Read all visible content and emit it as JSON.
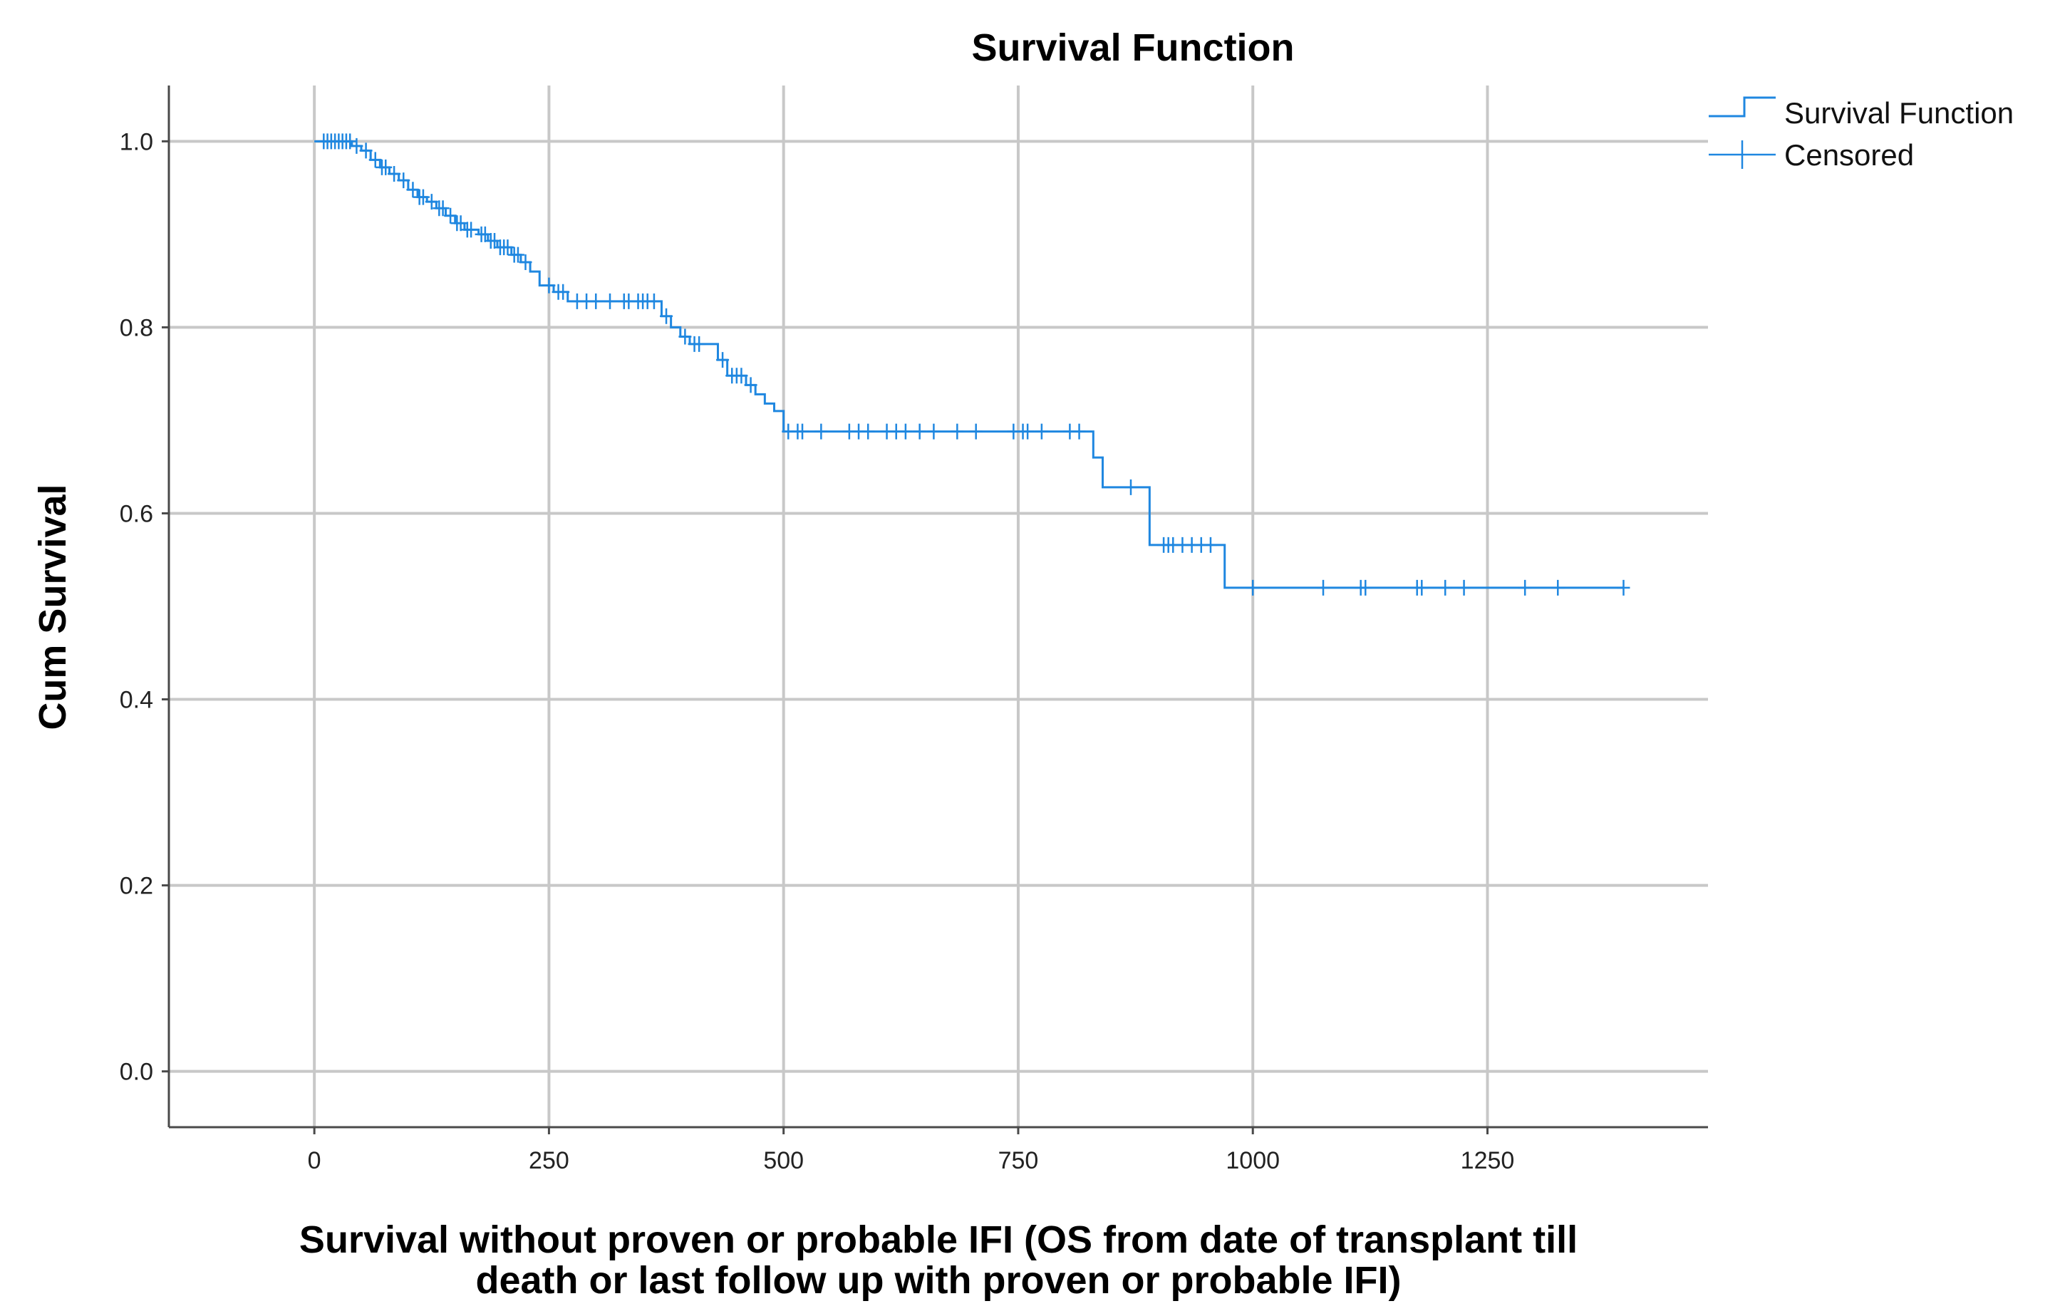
{
  "chart_data": {
    "type": "line",
    "title": "Survival Function",
    "xlabel_lines": [
      "Survival without proven or probable IFI (OS from date of transplant till",
      "death or last follow up with proven or probable IFI)"
    ],
    "ylabel": "Cum Survival",
    "xlim": [
      -155,
      1485
    ],
    "ylim": [
      -0.06,
      1.06
    ],
    "x_ticks": [
      0,
      250,
      500,
      750,
      1000,
      1250
    ],
    "x_tick_labels": [
      "0",
      "250",
      "500",
      "750",
      "1000",
      "1250"
    ],
    "y_ticks": [
      0.0,
      0.2,
      0.4,
      0.6,
      0.8,
      1.0
    ],
    "y_tick_labels": [
      "0.0",
      "0.2",
      "0.4",
      "0.6",
      "0.8",
      "1.0"
    ],
    "grid": true,
    "series_color": "#1f87e0",
    "legend": {
      "position": "top-right",
      "entries": [
        {
          "label": "Survival Function",
          "symbol": "step-line-icon"
        },
        {
          "label": "Censored",
          "symbol": "plus-icon"
        }
      ]
    },
    "survival_steps": [
      [
        0,
        1.0
      ],
      [
        40,
        0.995
      ],
      [
        50,
        0.99
      ],
      [
        60,
        0.98
      ],
      [
        70,
        0.972
      ],
      [
        80,
        0.965
      ],
      [
        90,
        0.958
      ],
      [
        100,
        0.948
      ],
      [
        110,
        0.94
      ],
      [
        120,
        0.935
      ],
      [
        130,
        0.928
      ],
      [
        140,
        0.92
      ],
      [
        150,
        0.912
      ],
      [
        160,
        0.905
      ],
      [
        175,
        0.9
      ],
      [
        185,
        0.893
      ],
      [
        195,
        0.886
      ],
      [
        210,
        0.878
      ],
      [
        220,
        0.87
      ],
      [
        230,
        0.86
      ],
      [
        240,
        0.845
      ],
      [
        255,
        0.838
      ],
      [
        270,
        0.828
      ],
      [
        370,
        0.812
      ],
      [
        380,
        0.8
      ],
      [
        390,
        0.79
      ],
      [
        400,
        0.782
      ],
      [
        430,
        0.765
      ],
      [
        440,
        0.748
      ],
      [
        460,
        0.738
      ],
      [
        470,
        0.728
      ],
      [
        480,
        0.718
      ],
      [
        490,
        0.71
      ],
      [
        500,
        0.688
      ],
      [
        830,
        0.66
      ],
      [
        840,
        0.628
      ],
      [
        890,
        0.566
      ],
      [
        970,
        0.52
      ],
      [
        1395,
        0.52
      ]
    ],
    "censored": [
      [
        10,
        1.0
      ],
      [
        14,
        1.0
      ],
      [
        18,
        1.0
      ],
      [
        22,
        1.0
      ],
      [
        26,
        1.0
      ],
      [
        30,
        1.0
      ],
      [
        34,
        1.0
      ],
      [
        38,
        1.0
      ],
      [
        45,
        0.995
      ],
      [
        55,
        0.99
      ],
      [
        65,
        0.98
      ],
      [
        72,
        0.972
      ],
      [
        76,
        0.972
      ],
      [
        85,
        0.965
      ],
      [
        95,
        0.958
      ],
      [
        105,
        0.948
      ],
      [
        112,
        0.94
      ],
      [
        116,
        0.94
      ],
      [
        125,
        0.935
      ],
      [
        133,
        0.928
      ],
      [
        137,
        0.928
      ],
      [
        145,
        0.92
      ],
      [
        152,
        0.912
      ],
      [
        156,
        0.912
      ],
      [
        163,
        0.905
      ],
      [
        167,
        0.905
      ],
      [
        178,
        0.9
      ],
      [
        182,
        0.9
      ],
      [
        188,
        0.893
      ],
      [
        192,
        0.893
      ],
      [
        198,
        0.886
      ],
      [
        202,
        0.886
      ],
      [
        206,
        0.886
      ],
      [
        213,
        0.878
      ],
      [
        217,
        0.878
      ],
      [
        225,
        0.87
      ],
      [
        250,
        0.845
      ],
      [
        260,
        0.838
      ],
      [
        265,
        0.838
      ],
      [
        280,
        0.828
      ],
      [
        290,
        0.828
      ],
      [
        300,
        0.828
      ],
      [
        315,
        0.828
      ],
      [
        330,
        0.828
      ],
      [
        335,
        0.828
      ],
      [
        345,
        0.828
      ],
      [
        350,
        0.828
      ],
      [
        355,
        0.828
      ],
      [
        362,
        0.828
      ],
      [
        375,
        0.812
      ],
      [
        395,
        0.79
      ],
      [
        405,
        0.782
      ],
      [
        410,
        0.782
      ],
      [
        435,
        0.765
      ],
      [
        445,
        0.748
      ],
      [
        450,
        0.748
      ],
      [
        455,
        0.748
      ],
      [
        465,
        0.738
      ],
      [
        505,
        0.688
      ],
      [
        515,
        0.688
      ],
      [
        520,
        0.688
      ],
      [
        540,
        0.688
      ],
      [
        570,
        0.688
      ],
      [
        580,
        0.688
      ],
      [
        590,
        0.688
      ],
      [
        610,
        0.688
      ],
      [
        620,
        0.688
      ],
      [
        630,
        0.688
      ],
      [
        645,
        0.688
      ],
      [
        660,
        0.688
      ],
      [
        685,
        0.688
      ],
      [
        705,
        0.688
      ],
      [
        745,
        0.688
      ],
      [
        755,
        0.688
      ],
      [
        760,
        0.688
      ],
      [
        775,
        0.688
      ],
      [
        805,
        0.688
      ],
      [
        815,
        0.688
      ],
      [
        870,
        0.628
      ],
      [
        905,
        0.566
      ],
      [
        910,
        0.566
      ],
      [
        915,
        0.566
      ],
      [
        925,
        0.566
      ],
      [
        935,
        0.566
      ],
      [
        945,
        0.566
      ],
      [
        955,
        0.566
      ],
      [
        1000,
        0.52
      ],
      [
        1075,
        0.52
      ],
      [
        1115,
        0.52
      ],
      [
        1120,
        0.52
      ],
      [
        1175,
        0.52
      ],
      [
        1180,
        0.52
      ],
      [
        1205,
        0.52
      ],
      [
        1225,
        0.52
      ],
      [
        1290,
        0.52
      ],
      [
        1325,
        0.52
      ],
      [
        1395,
        0.52
      ]
    ]
  }
}
